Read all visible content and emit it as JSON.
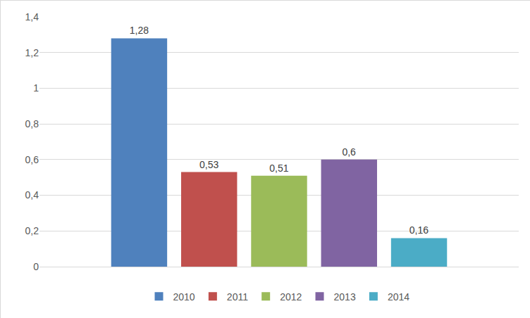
{
  "chart_data": {
    "type": "bar",
    "categories": [
      null
    ],
    "series": [
      {
        "name": "2010",
        "color": "#4f81bd",
        "values": [
          1.28
        ],
        "value_labels": [
          "1,28"
        ]
      },
      {
        "name": "2011",
        "color": "#c0504d",
        "values": [
          0.53
        ],
        "value_labels": [
          "0,53"
        ]
      },
      {
        "name": "2012",
        "color": "#9bbb59",
        "values": [
          0.51
        ],
        "value_labels": [
          "0,51"
        ]
      },
      {
        "name": "2013",
        "color": "#8064a2",
        "values": [
          0.6
        ],
        "value_labels": [
          "0,6"
        ]
      },
      {
        "name": "2014",
        "color": "#4bacc6",
        "values": [
          0.16
        ],
        "value_labels": [
          "0,16"
        ]
      }
    ],
    "ylim": [
      0,
      1.4
    ],
    "yticks": [
      0,
      {
        "value": 0.2,
        "label": "0,2"
      },
      {
        "value": 0.4,
        "label": "0,4"
      },
      {
        "value": 0.6,
        "label": "0,6"
      },
      {
        "value": 0.8,
        "label": "0,8"
      },
      1,
      {
        "value": 1.2,
        "label": "1,2"
      },
      {
        "value": 1.4,
        "label": "1,4"
      }
    ],
    "grid": true,
    "data_labels": true,
    "legend": "bottom",
    "tick_labels": "y"
  }
}
